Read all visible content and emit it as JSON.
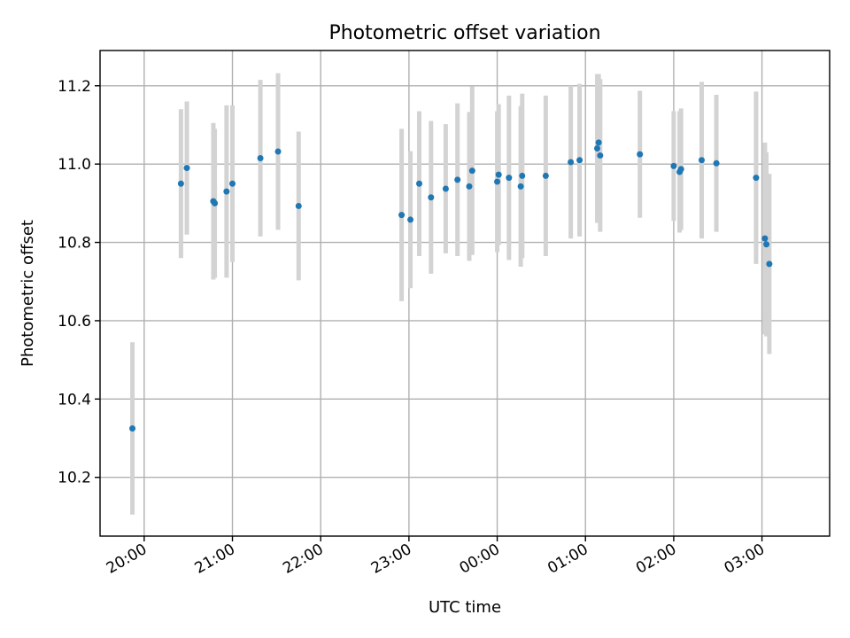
{
  "chart_data": {
    "type": "scatter",
    "title": "Photometric offset variation",
    "xlabel": "UTC time",
    "ylabel": "Photometric offset",
    "x_axis": {
      "kind": "time",
      "range": [
        "19:30",
        "03:46"
      ],
      "ticks": [
        "20:00",
        "21:00",
        "22:00",
        "23:00",
        "00:00",
        "01:00",
        "02:00",
        "03:00"
      ]
    },
    "y_axis": {
      "range": [
        10.05,
        11.29
      ],
      "ticks": [
        10.2,
        10.4,
        10.6,
        10.8,
        11.0,
        11.2
      ],
      "tick_labels": [
        "10.2",
        "10.4",
        "10.6",
        "10.8",
        "11.0",
        "11.2"
      ]
    },
    "grid": true,
    "colors": {
      "points": "#1f77b4",
      "errorbars": "#d3d3d3"
    },
    "points": [
      {
        "x": "19:52",
        "y": 10.325,
        "err": 0.22
      },
      {
        "x": "20:25",
        "y": 10.95,
        "err": 0.19
      },
      {
        "x": "20:29",
        "y": 10.99,
        "err": 0.17
      },
      {
        "x": "20:47",
        "y": 10.905,
        "err": 0.2
      },
      {
        "x": "20:48",
        "y": 10.9,
        "err": 0.19
      },
      {
        "x": "20:56",
        "y": 10.93,
        "err": 0.22
      },
      {
        "x": "21:00",
        "y": 10.95,
        "err": 0.2
      },
      {
        "x": "21:19",
        "y": 11.015,
        "err": 0.2
      },
      {
        "x": "21:31",
        "y": 11.032,
        "err": 0.2
      },
      {
        "x": "21:45",
        "y": 10.893,
        "err": 0.19
      },
      {
        "x": "22:55",
        "y": 10.87,
        "err": 0.22
      },
      {
        "x": "23:01",
        "y": 10.858,
        "err": 0.175
      },
      {
        "x": "23:07",
        "y": 10.95,
        "err": 0.185
      },
      {
        "x": "23:15",
        "y": 10.915,
        "err": 0.195
      },
      {
        "x": "23:25",
        "y": 10.937,
        "err": 0.165
      },
      {
        "x": "23:33",
        "y": 10.96,
        "err": 0.195
      },
      {
        "x": "23:41",
        "y": 10.943,
        "err": 0.19
      },
      {
        "x": "23:43",
        "y": 10.983,
        "err": 0.215
      },
      {
        "x": "00:00",
        "y": 10.955,
        "err": 0.18
      },
      {
        "x": "00:01",
        "y": 10.973,
        "err": 0.18
      },
      {
        "x": "00:08",
        "y": 10.965,
        "err": 0.21
      },
      {
        "x": "00:16",
        "y": 10.943,
        "err": 0.205
      },
      {
        "x": "00:17",
        "y": 10.97,
        "err": 0.21
      },
      {
        "x": "00:33",
        "y": 10.97,
        "err": 0.205
      },
      {
        "x": "00:50",
        "y": 11.005,
        "err": 0.195
      },
      {
        "x": "00:56",
        "y": 11.01,
        "err": 0.195
      },
      {
        "x": "01:08",
        "y": 11.04,
        "err": 0.19
      },
      {
        "x": "01:09",
        "y": 11.055,
        "err": 0.175
      },
      {
        "x": "01:10",
        "y": 11.022,
        "err": 0.195
      },
      {
        "x": "01:37",
        "y": 11.025,
        "err": 0.162
      },
      {
        "x": "02:00",
        "y": 10.995,
        "err": 0.14
      },
      {
        "x": "02:04",
        "y": 10.98,
        "err": 0.155
      },
      {
        "x": "02:05",
        "y": 10.987,
        "err": 0.155
      },
      {
        "x": "02:19",
        "y": 11.01,
        "err": 0.2
      },
      {
        "x": "02:29",
        "y": 11.002,
        "err": 0.175
      },
      {
        "x": "02:56",
        "y": 10.965,
        "err": 0.22
      },
      {
        "x": "03:02",
        "y": 10.81,
        "err": 0.245
      },
      {
        "x": "03:03",
        "y": 10.795,
        "err": 0.235
      },
      {
        "x": "03:05",
        "y": 10.745,
        "err": 0.23
      }
    ]
  }
}
